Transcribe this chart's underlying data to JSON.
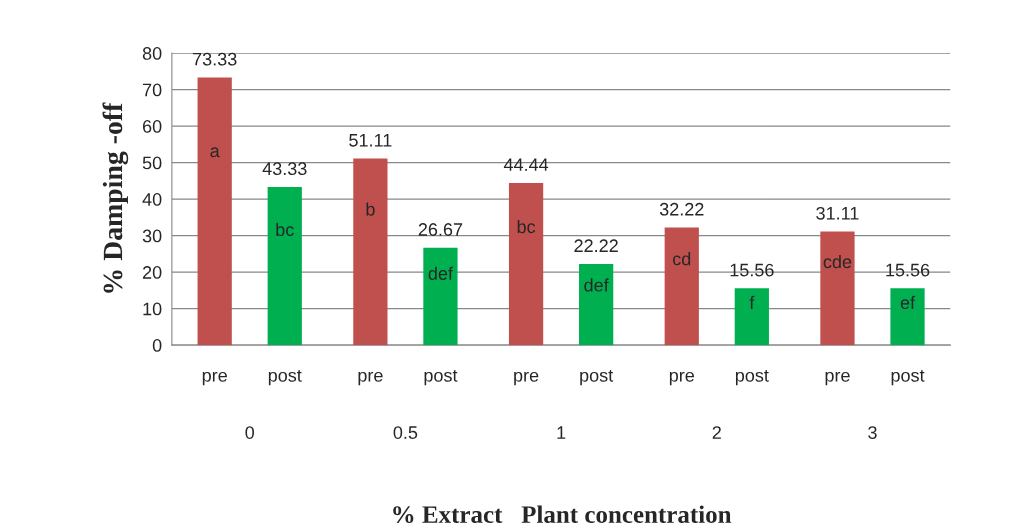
{
  "chart_data": {
    "type": "bar",
    "xlabel": "% Extract   Plant concentration",
    "ylabel": "% Damping -off",
    "categories": [
      "0",
      "0.5",
      "1",
      "2",
      "3"
    ],
    "series": [
      {
        "name": "pre",
        "color": "#c0504d",
        "values": [
          73.33,
          51.11,
          44.44,
          32.22,
          31.11
        ]
      },
      {
        "name": "post",
        "color": "#00b050",
        "values": [
          43.33,
          26.67,
          22.22,
          15.56,
          15.56
        ]
      }
    ],
    "data_labels": true,
    "annotations": [
      "a",
      "bc",
      "b",
      "def",
      "bc",
      "def",
      "cd",
      "f",
      "cde",
      "ef"
    ],
    "ylim": [
      0,
      80
    ],
    "yticks": [
      0,
      10,
      20,
      30,
      40,
      50,
      60,
      70,
      80
    ],
    "grid": "y",
    "legend": false
  }
}
